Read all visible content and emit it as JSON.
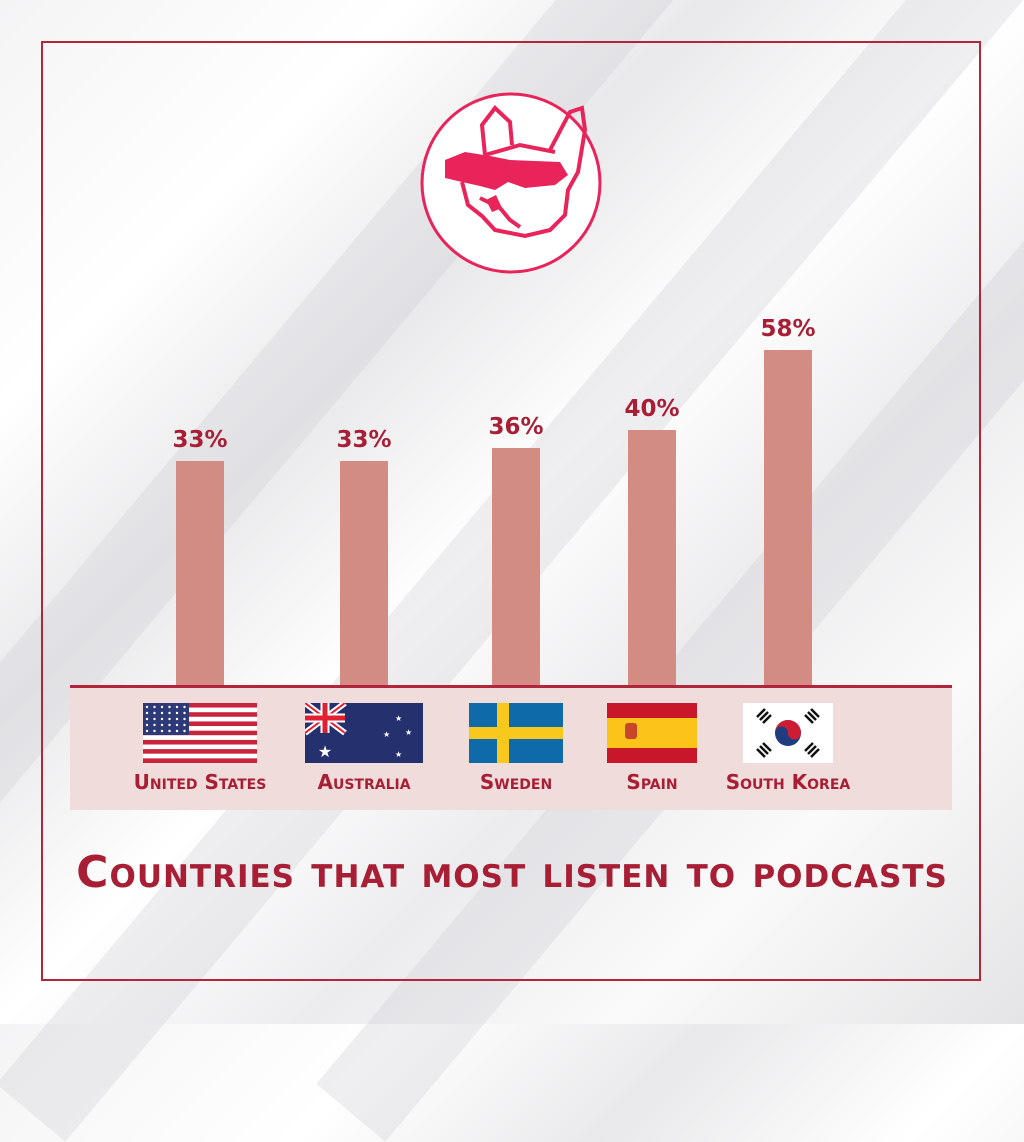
{
  "brand_color": "#e8245a",
  "accent_color": "#a81e35",
  "bar_color": "#d38c83",
  "logo": {
    "icon": "french-bulldog-sunglasses-logo"
  },
  "chart_data": {
    "type": "bar",
    "title": "Countries that most listen to podcasts",
    "categories": [
      "United States",
      "Australia",
      "Sweden",
      "Spain",
      "South Korea"
    ],
    "values": [
      33,
      33,
      36,
      40,
      58
    ],
    "data_labels": [
      "33%",
      "33%",
      "36%",
      "40%",
      "58%"
    ],
    "flags": [
      "us-flag-icon",
      "australia-flag-icon",
      "sweden-flag-icon",
      "spain-flag-icon",
      "south-korea-flag-icon"
    ],
    "unit": "%",
    "grid": false,
    "legend": "none"
  }
}
